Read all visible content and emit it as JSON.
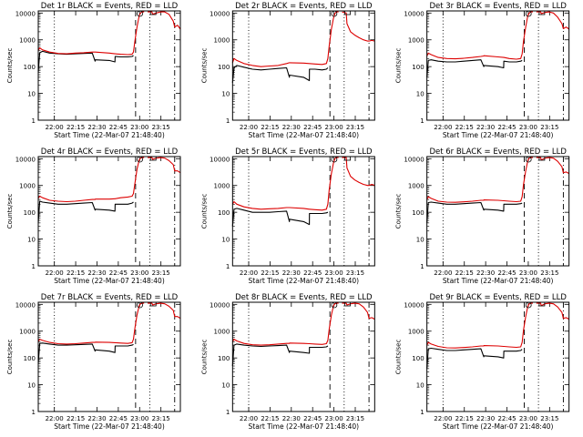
{
  "chart_data": {
    "type": "line",
    "layout": "3x3 grid",
    "common": {
      "xlabel": "Start Time (22-Mar-07 21:48:40)",
      "ylabel": "Counts/sec",
      "x_ticks": [
        "22:00",
        "22:15",
        "22:30",
        "22:45",
        "23:00",
        "23:15"
      ],
      "x_tick_minutes": [
        11.33,
        26.33,
        41.33,
        56.33,
        71.33,
        86.33
      ],
      "x_range_minutes": [
        0,
        100
      ],
      "y_scale": "log",
      "y_ticks": [
        "1",
        "10",
        "100",
        "1000",
        "10000"
      ],
      "y_tick_values": [
        1,
        10,
        100,
        1000,
        10000
      ],
      "ylim": [
        1,
        12000
      ],
      "vlines": [
        {
          "minute": 11.33,
          "style": "dotted"
        },
        {
          "minute": 68.5,
          "style": "dashed"
        },
        {
          "minute": 78.5,
          "style": "dotted"
        },
        {
          "minute": 96,
          "style": "dashdot"
        }
      ],
      "series_names": [
        "Events",
        "LLD"
      ],
      "series_colors": {
        "Events": "#000000",
        "LLD": "#dd0000"
      },
      "minutes": [
        0,
        1,
        3,
        8,
        14,
        20,
        26,
        32,
        38,
        40,
        40.1,
        50,
        54,
        54.1,
        58,
        63,
        66,
        67,
        68,
        69.5,
        71,
        72,
        73,
        74.5,
        75,
        77,
        80,
        80.5,
        83,
        86,
        89,
        92,
        95,
        96,
        98,
        100
      ]
    },
    "panels": [
      {
        "title": "Det 1r BLACK = Events, RED = LLD",
        "lld": [
          400,
          500,
          420,
          350,
          310,
          300,
          320,
          330,
          350,
          350,
          350,
          320,
          300,
          300,
          290,
          280,
          290,
          350,
          900,
          3000,
          8000,
          10000,
          11000,
          11000,
          null,
          11000,
          11000,
          9000,
          10000,
          11000,
          11000,
          9000,
          5000,
          3000,
          3500,
          2500
        ],
        "events": [
          60,
          330,
          370,
          320,
          300,
          290,
          300,
          310,
          320,
          160,
          180,
          170,
          150,
          240,
          230,
          230,
          240,
          260,
          null,
          null,
          null,
          null,
          null,
          null,
          null,
          null,
          null,
          null,
          null,
          null,
          null,
          null,
          null,
          null,
          null,
          null
        ]
      },
      {
        "title": "Det 2r BLACK = Events, RED = LLD",
        "lld": [
          140,
          200,
          170,
          130,
          110,
          100,
          105,
          110,
          130,
          140,
          140,
          135,
          130,
          130,
          125,
          120,
          130,
          200,
          600,
          2500,
          6500,
          9500,
          11000,
          11000,
          null,
          11000,
          10000,
          4000,
          2000,
          1500,
          1200,
          1000,
          900,
          900,
          950,
          900
        ],
        "events": [
          25,
          90,
          110,
          95,
          80,
          75,
          80,
          85,
          90,
          40,
          48,
          40,
          30,
          80,
          80,
          75,
          80,
          90,
          null,
          null,
          null,
          null,
          null,
          null,
          null,
          null,
          null,
          null,
          null,
          null,
          null,
          null,
          null,
          null,
          null,
          null
        ]
      },
      {
        "title": "Det 3r BLACK = Events, RED = LLD",
        "lld": [
          250,
          320,
          280,
          220,
          200,
          195,
          205,
          220,
          240,
          250,
          255,
          230,
          220,
          220,
          200,
          190,
          200,
          300,
          900,
          3000,
          8000,
          10000,
          11000,
          11000,
          null,
          11000,
          11000,
          9500,
          10500,
          11000,
          10000,
          7000,
          4000,
          2600,
          3000,
          2500
        ],
        "events": [
          40,
          170,
          180,
          160,
          150,
          150,
          160,
          170,
          180,
          100,
          110,
          100,
          90,
          160,
          150,
          150,
          160,
          170,
          null,
          null,
          null,
          null,
          null,
          null,
          null,
          null,
          null,
          null,
          null,
          null,
          null,
          null,
          null,
          null,
          null,
          null
        ]
      },
      {
        "title": "Det 4r BLACK = Events, RED = LLD",
        "lld": [
          330,
          400,
          350,
          280,
          260,
          250,
          260,
          280,
          300,
          300,
          310,
          310,
          320,
          320,
          350,
          370,
          400,
          500,
          1200,
          4000,
          9000,
          10500,
          11000,
          11000,
          null,
          11000,
          11000,
          9500,
          10500,
          11000,
          10500,
          8500,
          6000,
          3500,
          3500,
          3000
        ],
        "events": [
          40,
          260,
          240,
          220,
          200,
          200,
          210,
          220,
          230,
          120,
          130,
          120,
          110,
          200,
          200,
          200,
          220,
          240,
          null,
          null,
          null,
          null,
          null,
          null,
          null,
          null,
          null,
          null,
          null,
          null,
          null,
          null,
          null,
          null,
          null,
          null
        ]
      },
      {
        "title": "Det 5r BLACK = Events, RED = LLD",
        "lld": [
          200,
          250,
          200,
          160,
          140,
          130,
          135,
          140,
          150,
          150,
          150,
          140,
          130,
          130,
          125,
          120,
          130,
          200,
          700,
          2800,
          7000,
          10000,
          11000,
          11000,
          null,
          11000,
          11000,
          4500,
          2200,
          1600,
          1300,
          1100,
          1000,
          1000,
          1100,
          1000
        ],
        "events": [
          30,
          130,
          140,
          120,
          100,
          100,
          100,
          105,
          110,
          45,
          55,
          45,
          35,
          90,
          90,
          90,
          95,
          100,
          null,
          null,
          null,
          null,
          null,
          null,
          null,
          null,
          null,
          null,
          null,
          null,
          null,
          null,
          null,
          null,
          null,
          null
        ]
      },
      {
        "title": "Det 6r BLACK = Events, RED = LLD",
        "lld": [
          300,
          380,
          330,
          260,
          240,
          235,
          245,
          260,
          280,
          280,
          290,
          280,
          270,
          270,
          260,
          250,
          260,
          380,
          1100,
          3500,
          8500,
          10500,
          11000,
          11000,
          null,
          11000,
          11000,
          9000,
          10500,
          11000,
          10500,
          8000,
          5000,
          3000,
          3200,
          2800
        ],
        "events": [
          40,
          230,
          240,
          220,
          200,
          200,
          210,
          220,
          230,
          120,
          130,
          120,
          110,
          200,
          200,
          200,
          210,
          220,
          null,
          null,
          null,
          null,
          null,
          null,
          null,
          null,
          null,
          null,
          null,
          null,
          null,
          null,
          null,
          null,
          null,
          null
        ]
      },
      {
        "title": "Det 7r BLACK = Events, RED = LLD",
        "lld": [
          400,
          500,
          450,
          380,
          340,
          330,
          340,
          360,
          380,
          380,
          390,
          380,
          370,
          370,
          360,
          350,
          370,
          500,
          1300,
          4000,
          9000,
          10500,
          11000,
          11000,
          null,
          11000,
          11000,
          9500,
          10500,
          11000,
          10500,
          8500,
          6000,
          3500,
          3500,
          3000
        ],
        "events": [
          60,
          350,
          360,
          330,
          300,
          300,
          310,
          320,
          330,
          180,
          200,
          180,
          160,
          280,
          280,
          280,
          300,
          320,
          null,
          null,
          null,
          null,
          null,
          null,
          null,
          null,
          null,
          null,
          null,
          null,
          null,
          null,
          null,
          null,
          null,
          null
        ]
      },
      {
        "title": "Det 8r BLACK = Events, RED = LLD",
        "lld": [
          400,
          500,
          430,
          350,
          310,
          300,
          310,
          330,
          350,
          350,
          360,
          350,
          340,
          340,
          330,
          320,
          340,
          450,
          1200,
          4000,
          9000,
          10500,
          11000,
          11000,
          null,
          11000,
          11000,
          9500,
          10500,
          11000,
          10500,
          8000,
          5000,
          3000,
          3200,
          2800
        ],
        "events": [
          50,
          300,
          330,
          300,
          280,
          270,
          280,
          290,
          300,
          160,
          180,
          160,
          150,
          250,
          250,
          250,
          260,
          280,
          null,
          null,
          null,
          null,
          null,
          null,
          null,
          null,
          null,
          null,
          null,
          null,
          null,
          null,
          null,
          null,
          null,
          null
        ]
      },
      {
        "title": "Det 9r BLACK = Events, RED = LLD",
        "lld": [
          300,
          380,
          330,
          270,
          240,
          235,
          245,
          260,
          280,
          280,
          290,
          280,
          270,
          270,
          260,
          250,
          260,
          380,
          1100,
          3500,
          8500,
          10500,
          11000,
          11000,
          null,
          11000,
          11000,
          9000,
          10500,
          11000,
          10500,
          8000,
          5000,
          3000,
          3200,
          2800
        ],
        "events": [
          40,
          220,
          230,
          210,
          190,
          190,
          200,
          210,
          220,
          110,
          120,
          110,
          100,
          180,
          180,
          180,
          190,
          210,
          null,
          null,
          null,
          null,
          null,
          null,
          null,
          null,
          null,
          null,
          null,
          null,
          null,
          null,
          null,
          null,
          null,
          null
        ]
      }
    ]
  }
}
